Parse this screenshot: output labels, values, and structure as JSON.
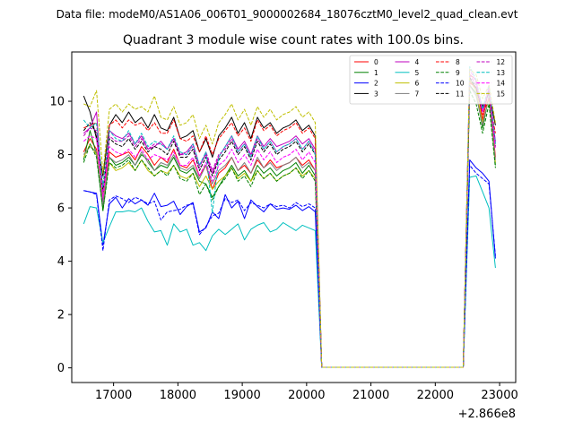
{
  "chart_data": {
    "type": "line",
    "suptitle": "Data file: modeM0/AS1A06_006T01_9000002684_18076cztM0_level2_quad_clean.evt",
    "title": "Quadrant 3 module wise count rates with 100.0s bins.",
    "xlabel": "",
    "ylabel": "",
    "offset_label": "+2.866e8",
    "xlim": [
      16350,
      23250
    ],
    "ylim": [
      -0.55,
      11.85
    ],
    "xticks": [
      17000,
      18000,
      19000,
      20000,
      21000,
      22000,
      23000
    ],
    "yticks": [
      0,
      2,
      4,
      6,
      8,
      10
    ],
    "grid": false,
    "legend_position": "top-right",
    "x_time": {
      "start": 16535,
      "step": 100,
      "count": 65,
      "comment": "bin time = start + i*step, axis offset +2.866e8"
    },
    "series": [
      {
        "name": "0",
        "color": "#ff0000",
        "dash": "solid",
        "values": [
          8.1,
          8.6,
          8.2,
          6.2,
          8.1,
          7.9,
          8.0,
          8.1,
          7.8,
          8.3,
          8.0,
          7.6,
          7.9,
          7.7,
          8.2,
          7.6,
          7.5,
          7.8,
          7.2,
          7.6,
          6.7,
          7.3,
          7.5,
          7.9,
          7.4,
          7.6,
          7.3,
          7.8,
          7.5,
          7.8,
          7.5,
          7.6,
          7.7,
          7.9,
          7.6,
          7.8,
          7.4,
          0.02,
          0.02,
          0.02,
          0.02,
          0.02,
          0.02,
          0.02,
          0.02,
          0.02,
          0.02,
          0.02,
          0.02,
          0.02,
          0.02,
          0.02,
          0.02,
          0.02,
          0.02,
          0.02,
          0.02,
          0.02,
          0.02,
          0.02,
          11.0,
          10.8,
          9.3,
          10.5,
          7.9
        ]
      },
      {
        "name": "1",
        "color": "#008000",
        "dash": "solid",
        "values": [
          7.8,
          8.9,
          8.0,
          5.9,
          7.9,
          7.6,
          7.7,
          7.9,
          7.6,
          8.0,
          7.8,
          7.4,
          7.6,
          7.5,
          7.9,
          7.4,
          7.3,
          7.5,
          7.0,
          6.9,
          6.4,
          6.8,
          7.2,
          7.6,
          7.2,
          7.4,
          7.0,
          7.6,
          7.3,
          7.5,
          7.2,
          7.4,
          7.5,
          7.7,
          7.3,
          7.6,
          7.2,
          0.02,
          0.02,
          0.02,
          0.02,
          0.02,
          0.02,
          0.02,
          0.02,
          0.02,
          0.02,
          0.02,
          0.02,
          0.02,
          0.02,
          0.02,
          0.02,
          0.02,
          0.02,
          0.02,
          0.02,
          0.02,
          0.02,
          0.02,
          10.6,
          10.3,
          9.0,
          10.2,
          7.6
        ]
      },
      {
        "name": "2",
        "color": "#0000ff",
        "dash": "solid",
        "values": [
          6.65,
          6.6,
          6.55,
          4.6,
          6.15,
          6.4,
          6.0,
          6.35,
          6.15,
          6.3,
          6.1,
          6.55,
          6.05,
          6.1,
          6.25,
          5.75,
          6.05,
          6.2,
          5.1,
          5.25,
          5.85,
          5.6,
          6.5,
          6.0,
          6.25,
          5.6,
          6.3,
          6.05,
          5.85,
          6.15,
          5.95,
          6.0,
          5.95,
          6.1,
          5.9,
          6.05,
          5.85,
          0.02,
          0.02,
          0.02,
          0.02,
          0.02,
          0.02,
          0.02,
          0.02,
          0.02,
          0.02,
          0.02,
          0.02,
          0.02,
          0.02,
          0.02,
          0.02,
          0.02,
          0.02,
          0.02,
          0.02,
          0.02,
          0.02,
          0.02,
          7.8,
          7.5,
          7.3,
          7.0,
          4.1
        ]
      },
      {
        "name": "3",
        "color": "#000000",
        "dash": "solid",
        "values": [
          10.2,
          9.6,
          8.6,
          7.2,
          9.1,
          9.5,
          9.2,
          9.6,
          9.2,
          9.4,
          9.0,
          9.5,
          9.0,
          8.9,
          9.4,
          8.6,
          8.7,
          8.9,
          8.1,
          8.6,
          7.9,
          8.7,
          9.0,
          9.4,
          8.8,
          9.2,
          8.6,
          9.4,
          9.0,
          9.2,
          8.8,
          9.0,
          9.1,
          9.3,
          8.9,
          9.1,
          8.7,
          0.02,
          0.02,
          0.02,
          0.02,
          0.02,
          0.02,
          0.02,
          0.02,
          0.02,
          0.02,
          0.02,
          0.02,
          0.02,
          0.02,
          0.02,
          0.02,
          0.02,
          0.02,
          0.02,
          0.02,
          0.02,
          0.02,
          0.02,
          10.8,
          10.5,
          9.8,
          10.3,
          9.1
        ]
      },
      {
        "name": "4",
        "color": "#bf00bf",
        "dash": "solid",
        "values": [
          8.8,
          9.0,
          9.6,
          6.2,
          8.9,
          8.7,
          8.6,
          8.8,
          8.4,
          8.7,
          8.2,
          8.3,
          8.5,
          8.2,
          8.6,
          8.0,
          8.1,
          8.4,
          7.6,
          8.0,
          7.3,
          7.9,
          8.3,
          8.7,
          8.2,
          8.5,
          8.0,
          8.7,
          8.3,
          8.6,
          8.3,
          8.4,
          8.5,
          8.7,
          8.4,
          8.6,
          8.2,
          0.02,
          0.02,
          0.02,
          0.02,
          0.02,
          0.02,
          0.02,
          0.02,
          0.02,
          0.02,
          0.02,
          0.02,
          0.02,
          0.02,
          0.02,
          0.02,
          0.02,
          0.02,
          0.02,
          0.02,
          0.02,
          0.02,
          0.02,
          10.8,
          10.4,
          9.6,
          10.4,
          8.5
        ]
      },
      {
        "name": "5",
        "color": "#00bfbf",
        "dash": "solid",
        "values": [
          5.4,
          6.05,
          6.0,
          4.7,
          5.3,
          5.85,
          5.85,
          5.9,
          5.85,
          6.0,
          5.5,
          5.1,
          5.15,
          4.6,
          5.4,
          5.1,
          5.2,
          4.6,
          4.7,
          4.4,
          4.95,
          5.2,
          5.0,
          5.2,
          5.4,
          4.8,
          5.2,
          5.35,
          5.45,
          5.1,
          5.2,
          5.45,
          5.3,
          5.15,
          5.35,
          5.25,
          5.15,
          0.02,
          0.02,
          0.02,
          0.02,
          0.02,
          0.02,
          0.02,
          0.02,
          0.02,
          0.02,
          0.02,
          0.02,
          0.02,
          0.02,
          0.02,
          0.02,
          0.02,
          0.02,
          0.02,
          0.02,
          0.02,
          0.02,
          0.02,
          7.15,
          7.2,
          6.6,
          6.0,
          3.75
        ]
      },
      {
        "name": "6",
        "color": "#bfbf00",
        "dash": "solid",
        "values": [
          7.9,
          8.4,
          8.0,
          6.4,
          7.7,
          7.4,
          7.5,
          7.7,
          7.4,
          7.8,
          7.4,
          7.2,
          7.4,
          7.3,
          7.6,
          7.2,
          7.1,
          7.3,
          6.8,
          7.2,
          6.7,
          7.0,
          7.2,
          7.5,
          7.1,
          7.3,
          7.0,
          7.4,
          7.1,
          7.3,
          7.0,
          7.2,
          7.3,
          7.5,
          7.2,
          7.4,
          7.1,
          0.02,
          0.02,
          0.02,
          0.02,
          0.02,
          0.02,
          0.02,
          0.02,
          0.02,
          0.02,
          0.02,
          0.02,
          0.02,
          0.02,
          0.02,
          0.02,
          0.02,
          0.02,
          0.02,
          0.02,
          0.02,
          0.02,
          0.02,
          10.8,
          10.4,
          9.2,
          10.1,
          7.7
        ]
      },
      {
        "name": "7",
        "color": "#808080",
        "dash": "solid",
        "values": [
          8.0,
          8.3,
          8.1,
          6.1,
          7.9,
          7.7,
          7.8,
          8.0,
          7.6,
          8.1,
          7.7,
          7.4,
          7.7,
          7.6,
          8.0,
          7.5,
          7.4,
          7.6,
          7.1,
          7.6,
          6.9,
          7.4,
          7.6,
          7.9,
          7.4,
          7.7,
          7.3,
          7.9,
          7.5,
          7.7,
          7.4,
          7.6,
          7.7,
          7.9,
          7.5,
          7.7,
          7.4,
          0.02,
          0.02,
          0.02,
          0.02,
          0.02,
          0.02,
          0.02,
          0.02,
          0.02,
          0.02,
          0.02,
          0.02,
          0.02,
          0.02,
          0.02,
          0.02,
          0.02,
          0.02,
          0.02,
          0.02,
          0.02,
          0.02,
          0.02,
          10.6,
          10.2,
          9.1,
          10.2,
          7.8
        ]
      },
      {
        "name": "8",
        "color": "#ff0000",
        "dash": "dashed",
        "values": [
          9.0,
          9.1,
          9.2,
          6.8,
          9.1,
          9.3,
          9.0,
          9.3,
          9.1,
          9.2,
          8.9,
          9.2,
          8.8,
          8.8,
          9.3,
          8.6,
          8.5,
          8.7,
          8.1,
          8.7,
          8.0,
          8.6,
          8.9,
          9.2,
          8.7,
          9.0,
          8.5,
          9.3,
          8.9,
          9.1,
          8.7,
          8.9,
          9.0,
          9.2,
          8.8,
          9.0,
          8.6,
          0.02,
          0.02,
          0.02,
          0.02,
          0.02,
          0.02,
          0.02,
          0.02,
          0.02,
          0.02,
          0.02,
          0.02,
          0.02,
          0.02,
          0.02,
          0.02,
          0.02,
          0.02,
          0.02,
          0.02,
          0.02,
          0.02,
          0.02,
          10.7,
          10.5,
          9.5,
          10.1,
          8.8
        ]
      },
      {
        "name": "9",
        "color": "#008000",
        "dash": "dashed",
        "values": [
          7.7,
          8.4,
          7.9,
          5.9,
          7.7,
          7.5,
          7.6,
          7.8,
          7.4,
          7.8,
          7.5,
          7.2,
          7.4,
          7.2,
          7.6,
          7.1,
          7.0,
          7.3,
          6.5,
          6.9,
          6.3,
          6.8,
          7.1,
          7.5,
          7.0,
          7.2,
          6.8,
          7.4,
          7.1,
          7.3,
          7.0,
          7.2,
          7.3,
          7.5,
          7.1,
          7.4,
          7.0,
          0.02,
          0.02,
          0.02,
          0.02,
          0.02,
          0.02,
          0.02,
          0.02,
          0.02,
          0.02,
          0.02,
          0.02,
          0.02,
          0.02,
          0.02,
          0.02,
          0.02,
          0.02,
          0.02,
          0.02,
          0.02,
          0.02,
          0.02,
          10.4,
          9.9,
          8.8,
          9.9,
          7.5
        ]
      },
      {
        "name": "10",
        "color": "#0000ff",
        "dash": "dashed",
        "values": [
          6.65,
          6.6,
          6.5,
          4.4,
          6.3,
          6.45,
          6.35,
          6.2,
          6.4,
          6.3,
          6.15,
          6.25,
          5.55,
          5.85,
          5.9,
          5.95,
          6.1,
          6.15,
          5.0,
          5.3,
          5.7,
          5.8,
          6.35,
          6.2,
          6.3,
          5.9,
          6.2,
          6.1,
          6.0,
          6.15,
          6.05,
          6.1,
          6.0,
          6.2,
          6.05,
          6.15,
          6.0,
          0.02,
          0.02,
          0.02,
          0.02,
          0.02,
          0.02,
          0.02,
          0.02,
          0.02,
          0.02,
          0.02,
          0.02,
          0.02,
          0.02,
          0.02,
          0.02,
          0.02,
          0.02,
          0.02,
          0.02,
          0.02,
          0.02,
          0.02,
          7.6,
          7.3,
          7.1,
          6.9,
          4.2
        ]
      },
      {
        "name": "11",
        "color": "#000000",
        "dash": "dashed",
        "values": [
          8.9,
          9.2,
          8.8,
          6.6,
          8.6,
          8.4,
          8.3,
          8.6,
          8.2,
          8.5,
          8.1,
          8.3,
          8.2,
          8.0,
          8.5,
          7.9,
          7.9,
          8.2,
          7.4,
          7.9,
          7.2,
          7.8,
          8.1,
          8.5,
          8.0,
          8.3,
          7.8,
          8.5,
          8.1,
          8.4,
          8.0,
          8.2,
          8.3,
          8.5,
          8.1,
          8.4,
          8.0,
          0.02,
          0.02,
          0.02,
          0.02,
          0.02,
          0.02,
          0.02,
          0.02,
          0.02,
          0.02,
          0.02,
          0.02,
          0.02,
          0.02,
          0.02,
          0.02,
          0.02,
          0.02,
          0.02,
          0.02,
          0.02,
          0.02,
          0.02,
          10.9,
          10.5,
          9.6,
          10.4,
          8.3
        ]
      },
      {
        "name": "12",
        "color": "#bf00bf",
        "dash": "dashed",
        "values": [
          8.7,
          9.0,
          8.9,
          6.5,
          8.7,
          8.5,
          8.5,
          8.7,
          8.3,
          8.6,
          8.2,
          8.4,
          8.4,
          8.2,
          8.6,
          8.0,
          8.0,
          8.3,
          7.5,
          8.1,
          7.4,
          8.0,
          8.2,
          8.6,
          8.1,
          8.4,
          7.9,
          8.6,
          8.2,
          8.5,
          8.1,
          8.3,
          8.4,
          8.6,
          8.2,
          8.5,
          8.1,
          0.02,
          0.02,
          0.02,
          0.02,
          0.02,
          0.02,
          0.02,
          0.02,
          0.02,
          0.02,
          0.02,
          0.02,
          0.02,
          0.02,
          0.02,
          0.02,
          0.02,
          0.02,
          0.02,
          0.02,
          0.02,
          0.02,
          0.02,
          11.0,
          10.6,
          9.7,
          10.5,
          8.4
        ]
      },
      {
        "name": "13",
        "color": "#00bfbf",
        "dash": "dashed",
        "values": [
          9.3,
          9.0,
          9.2,
          6.8,
          8.9,
          8.6,
          8.5,
          8.9,
          8.4,
          8.8,
          8.3,
          8.5,
          8.4,
          8.2,
          8.7,
          8.1,
          8.0,
          8.4,
          7.6,
          8.1,
          5.8,
          7.9,
          8.3,
          8.7,
          8.1,
          8.4,
          7.9,
          8.7,
          8.2,
          8.5,
          8.1,
          8.3,
          8.4,
          8.6,
          8.2,
          8.5,
          8.0,
          0.02,
          0.02,
          0.02,
          0.02,
          0.02,
          0.02,
          0.02,
          0.02,
          0.02,
          0.02,
          0.02,
          0.02,
          0.02,
          0.02,
          0.02,
          0.02,
          0.02,
          0.02,
          0.02,
          0.02,
          0.02,
          0.02,
          0.02,
          11.3,
          10.8,
          9.7,
          10.6,
          8.4
        ]
      },
      {
        "name": "14",
        "color": "#ff00ff",
        "dash": "dashed",
        "values": [
          8.5,
          8.7,
          8.6,
          6.4,
          8.3,
          8.1,
          8.0,
          8.2,
          7.9,
          8.2,
          7.8,
          8.0,
          7.9,
          7.8,
          8.1,
          7.6,
          7.6,
          7.9,
          7.2,
          7.7,
          7.0,
          7.6,
          7.8,
          8.2,
          7.7,
          8.0,
          7.6,
          8.2,
          7.8,
          8.1,
          7.7,
          7.9,
          8.0,
          8.2,
          7.8,
          8.1,
          7.7,
          0.02,
          0.02,
          0.02,
          0.02,
          0.02,
          0.02,
          0.02,
          0.02,
          0.02,
          0.02,
          0.02,
          0.02,
          0.02,
          0.02,
          0.02,
          0.02,
          0.02,
          0.02,
          0.02,
          0.02,
          0.02,
          0.02,
          0.02,
          11.2,
          10.7,
          9.6,
          10.5,
          8.2
        ]
      },
      {
        "name": "15",
        "color": "#bfbf00",
        "dash": "dashed",
        "values": [
          9.9,
          9.8,
          10.4,
          7.3,
          9.7,
          9.9,
          9.6,
          9.9,
          9.7,
          9.8,
          9.6,
          10.2,
          9.4,
          9.3,
          9.8,
          9.1,
          9.2,
          9.5,
          8.6,
          9.1,
          8.4,
          9.2,
          9.5,
          9.9,
          9.3,
          9.7,
          9.1,
          9.8,
          9.4,
          9.7,
          9.3,
          9.5,
          9.6,
          9.8,
          9.4,
          9.6,
          9.2,
          0.02,
          0.02,
          0.02,
          0.02,
          0.02,
          0.02,
          0.02,
          0.02,
          0.02,
          0.02,
          0.02,
          0.02,
          0.02,
          0.02,
          0.02,
          0.02,
          0.02,
          0.02,
          0.02,
          0.02,
          0.02,
          0.02,
          0.02,
          11.2,
          11.0,
          10.1,
          10.6,
          9.2
        ]
      }
    ]
  }
}
